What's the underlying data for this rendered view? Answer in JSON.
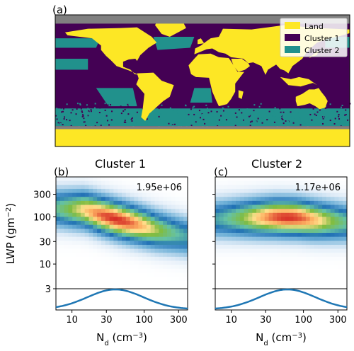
{
  "chart_data": [
    {
      "panel_label": "(a)",
      "type": "map",
      "legend": [
        "Land",
        "Cluster 1",
        "Cluster 2"
      ],
      "legend_placement": "top-right",
      "colors": {
        "land": "#fde725",
        "cluster_1": "#440154",
        "cluster_2": "#21918c",
        "no_data": "#808080"
      }
    },
    {
      "panel_label": "(b)",
      "type": "heatmap",
      "title": "Cluster 1",
      "annotation": "1.95e+06",
      "xlabel": "N",
      "xlabel_sub": "d",
      "xlabel_unit_pre": " (cm",
      "xlabel_unit_sup": "−3",
      "xlabel_unit_post": ")",
      "ylabel": "LWP (gm",
      "ylabel_sup": "−2",
      "ylabel_post": ")",
      "xscale": "log",
      "yscale": "log",
      "xlim": [
        6,
        400
      ],
      "ylim": [
        3,
        700
      ],
      "xticks": [
        10,
        30,
        100,
        300
      ],
      "yticks": [
        3,
        10,
        30,
        100,
        300
      ],
      "ridge": [
        [
          6,
          150
        ],
        [
          15,
          140
        ],
        [
          25,
          110
        ],
        [
          45,
          85
        ],
        [
          80,
          68
        ],
        [
          150,
          52
        ],
        [
          400,
          38
        ]
      ],
      "marginal_peak_nd": 40
    },
    {
      "panel_label": "(c)",
      "type": "heatmap",
      "title": "Cluster 2",
      "annotation": "1.17e+06",
      "xlabel": "N",
      "xlabel_sub": "d",
      "xlabel_unit_pre": " (cm",
      "xlabel_unit_sup": "−3",
      "xlabel_unit_post": ")",
      "xscale": "log",
      "yscale": "log",
      "xlim": [
        6,
        400
      ],
      "ylim": [
        3,
        700
      ],
      "xticks": [
        10,
        30,
        100,
        300
      ],
      "yticks": [
        3,
        10,
        30,
        100,
        300
      ],
      "ridge": [
        [
          6,
          90
        ],
        [
          20,
          95
        ],
        [
          40,
          98
        ],
        [
          80,
          95
        ],
        [
          150,
          85
        ],
        [
          400,
          75
        ]
      ],
      "marginal_peak_nd": 60
    }
  ]
}
